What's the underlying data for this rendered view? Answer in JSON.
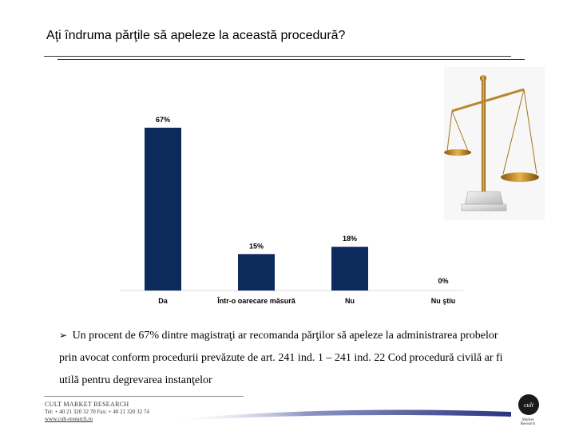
{
  "slide": {
    "title": "Aţi îndruma părţile să apeleze la această procedură?"
  },
  "chart_data": {
    "type": "bar",
    "title": "",
    "xlabel": "",
    "ylabel": "",
    "ylim": [
      0,
      67
    ],
    "grid": false,
    "categories": [
      "Da",
      "Într-o oarecare măsură",
      "Nu",
      "Nu ştiu"
    ],
    "values": [
      67,
      15,
      18,
      0
    ],
    "value_labels": [
      "67%",
      "15%",
      "18%",
      "0%"
    ],
    "bar_color": "#0d2a5c"
  },
  "summary": {
    "bullet_icon": "arrow-bullet-icon",
    "bullet_glyph": "➢",
    "text": "Un procent de 67% dintre magistraţi ar recomanda părţilor să apeleze la administrarea probelor prin avocat conform procedurii prevăzute de art. 241 ind. 1 – 241 ind. 22 Cod procedură civilă ar fi utilă pentru degrevarea instanţelor"
  },
  "illustration": {
    "icon": "balance-scale-icon"
  },
  "footer": {
    "company": "CULT MARKET RESEARCH",
    "phone": "Tel: + 40 21 320 32 70  Fax: + 40 21 320 32 74",
    "website": "www.cult-research.ro",
    "logo_icon": "cult-logo-icon",
    "logo_text": "cult",
    "logo_caption": "Market Research"
  }
}
